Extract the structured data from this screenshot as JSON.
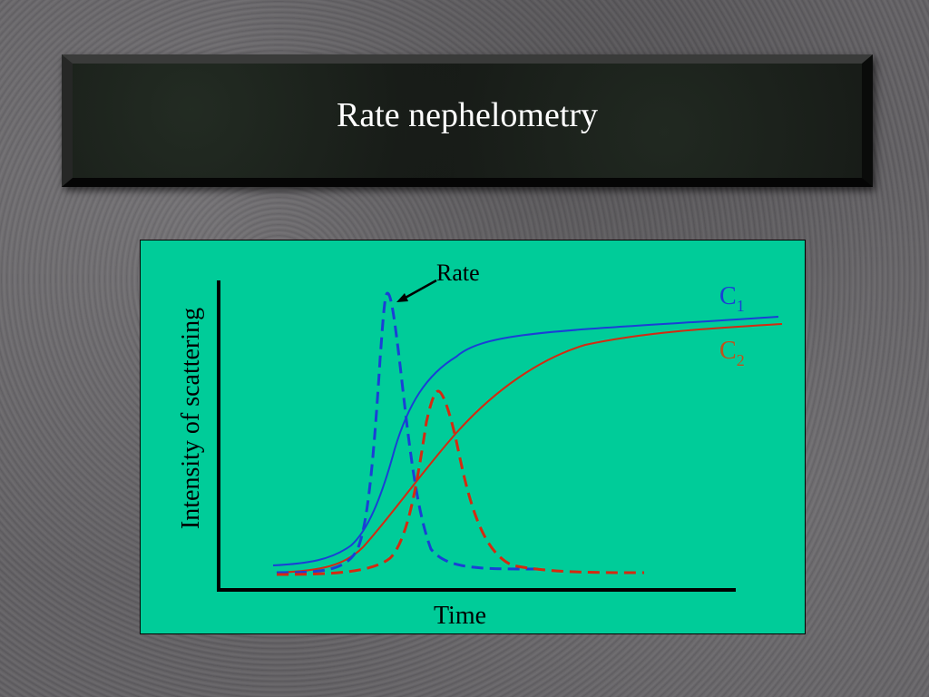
{
  "slide": {
    "title": "Rate nephelometry"
  },
  "figure": {
    "ylabel": "Intensity of scattering",
    "xlabel": "Time",
    "annotation": "Rate",
    "legend": [
      {
        "text": "C",
        "sub": "1",
        "color": "#1a3fd6"
      },
      {
        "text": "C",
        "sub": "2",
        "color": "#c0521a"
      }
    ],
    "colors": {
      "panel": "#00cc99",
      "c1": "#1a3fd6",
      "c2": "#d42a10",
      "axis": "#000000"
    }
  }
}
